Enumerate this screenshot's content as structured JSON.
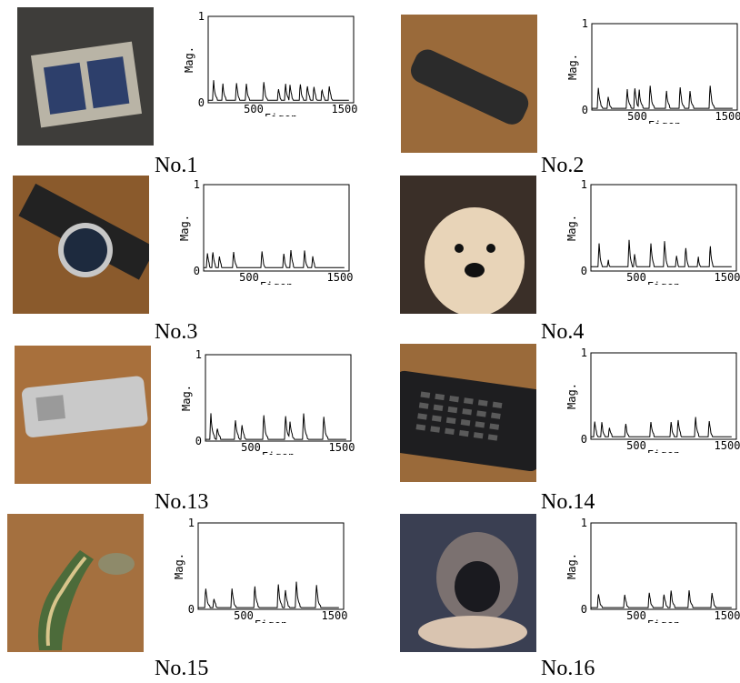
{
  "chart_data": [
    {
      "type": "line",
      "label": "No.1",
      "xlabel": "Eigen",
      "ylabel": "Mag.",
      "xlim": [
        0,
        1600
      ],
      "ylim": [
        0,
        1
      ],
      "xticks": [
        500,
        1500
      ],
      "yticks": [
        0,
        1
      ],
      "peaks": [
        [
          60,
          0.24
        ],
        [
          160,
          0.22
        ],
        [
          310,
          0.24
        ],
        [
          420,
          0.2
        ],
        [
          610,
          0.25
        ],
        [
          770,
          0.18
        ],
        [
          850,
          0.22
        ],
        [
          900,
          0.2
        ],
        [
          1010,
          0.24
        ],
        [
          1090,
          0.21
        ],
        [
          1160,
          0.22
        ],
        [
          1250,
          0.18
        ],
        [
          1330,
          0.2
        ],
        [
          1560,
          0.28
        ]
      ],
      "baseline": 0.03
    },
    {
      "type": "line",
      "label": "No.2",
      "xlabel": "Eigen",
      "ylabel": "Mag.",
      "xlim": [
        0,
        1600
      ],
      "ylim": [
        0,
        1
      ],
      "xticks": [
        500,
        1500
      ],
      "yticks": [
        0,
        1
      ],
      "peaks": [
        [
          70,
          0.28
        ],
        [
          180,
          0.14
        ],
        [
          390,
          0.22
        ],
        [
          470,
          0.3
        ],
        [
          520,
          0.24
        ],
        [
          640,
          0.3
        ],
        [
          820,
          0.22
        ],
        [
          970,
          0.28
        ],
        [
          1080,
          0.2
        ],
        [
          1300,
          0.3
        ]
      ],
      "baseline": 0.02
    },
    {
      "type": "line",
      "label": "No.3",
      "xlabel": "Eigen",
      "ylabel": "Mag.",
      "xlim": [
        0,
        1600
      ],
      "ylim": [
        0,
        1
      ],
      "xticks": [
        500,
        1500
      ],
      "yticks": [
        0,
        1
      ],
      "peaks": [
        [
          40,
          0.22
        ],
        [
          100,
          0.24
        ],
        [
          170,
          0.2
        ],
        [
          330,
          0.22
        ],
        [
          640,
          0.24
        ],
        [
          880,
          0.2
        ],
        [
          960,
          0.24
        ],
        [
          1110,
          0.22
        ],
        [
          1200,
          0.16
        ]
      ],
      "baseline": 0.04
    },
    {
      "type": "line",
      "label": "No.4",
      "xlabel": "Eigen",
      "ylabel": "Mag.",
      "xlim": [
        0,
        1600
      ],
      "ylim": [
        0,
        1
      ],
      "xticks": [
        500,
        1500
      ],
      "yticks": [
        0,
        1
      ],
      "peaks": [
        [
          90,
          0.3
        ],
        [
          190,
          0.12
        ],
        [
          420,
          0.34
        ],
        [
          480,
          0.18
        ],
        [
          660,
          0.32
        ],
        [
          810,
          0.33
        ],
        [
          940,
          0.18
        ],
        [
          1040,
          0.31
        ],
        [
          1180,
          0.16
        ],
        [
          1310,
          0.33
        ]
      ],
      "baseline": 0.05
    },
    {
      "type": "line",
      "label": "No.13",
      "xlabel": "Eigen",
      "ylabel": "Mag.",
      "xlim": [
        0,
        1600
      ],
      "ylim": [
        0,
        1
      ],
      "xticks": [
        500,
        1500
      ],
      "yticks": [
        0,
        1
      ],
      "peaks": [
        [
          60,
          0.3
        ],
        [
          130,
          0.16
        ],
        [
          330,
          0.24
        ],
        [
          400,
          0.2
        ],
        [
          640,
          0.32
        ],
        [
          880,
          0.3
        ],
        [
          930,
          0.22
        ],
        [
          1080,
          0.3
        ],
        [
          1300,
          0.3
        ]
      ],
      "baseline": 0.02
    },
    {
      "type": "line",
      "label": "No.14",
      "xlabel": "Eigen",
      "ylabel": "Mag.",
      "xlim": [
        0,
        1600
      ],
      "ylim": [
        0,
        1
      ],
      "xticks": [
        500,
        1500
      ],
      "yticks": [
        0,
        1
      ],
      "peaks": [
        [
          40,
          0.22
        ],
        [
          120,
          0.18
        ],
        [
          200,
          0.16
        ],
        [
          380,
          0.2
        ],
        [
          660,
          0.2
        ],
        [
          880,
          0.2
        ],
        [
          960,
          0.22
        ],
        [
          1150,
          0.26
        ],
        [
          1300,
          0.22
        ]
      ],
      "baseline": 0.03
    },
    {
      "type": "line",
      "label": "No.15",
      "xlabel": "Eigen",
      "ylabel": "Mag.",
      "xlim": [
        0,
        1600
      ],
      "ylim": [
        0,
        1
      ],
      "xticks": [
        500,
        1500
      ],
      "yticks": [
        0,
        1
      ],
      "peaks": [
        [
          80,
          0.28
        ],
        [
          170,
          0.14
        ],
        [
          370,
          0.26
        ],
        [
          620,
          0.3
        ],
        [
          880,
          0.3
        ],
        [
          960,
          0.22
        ],
        [
          1080,
          0.3
        ],
        [
          1300,
          0.3
        ]
      ],
      "baseline": 0.02
    },
    {
      "type": "line",
      "label": "No.16",
      "xlabel": "Eigen",
      "ylabel": "Mag.",
      "xlim": [
        0,
        1600
      ],
      "ylim": [
        0,
        1
      ],
      "xticks": [
        500,
        1500
      ],
      "yticks": [
        0,
        1
      ],
      "peaks": [
        [
          80,
          0.2
        ],
        [
          370,
          0.18
        ],
        [
          640,
          0.2
        ],
        [
          800,
          0.2
        ],
        [
          880,
          0.22
        ],
        [
          1080,
          0.2
        ],
        [
          1330,
          0.2
        ]
      ],
      "baseline": 0.02
    }
  ],
  "photos": [
    {
      "subject": "card-holder",
      "colors": [
        "#b9b4a6",
        "#6b6a66",
        "#2d3f6b"
      ]
    },
    {
      "subject": "remote-control",
      "colors": [
        "#9a6a3a",
        "#2b2b2b",
        "#5a3a1c"
      ]
    },
    {
      "subject": "wrist-watch",
      "colors": [
        "#8a5a2c",
        "#1d2a3e",
        "#c7c7c7"
      ]
    },
    {
      "subject": "dog",
      "colors": [
        "#3a2f28",
        "#e8d4b8",
        "#111111"
      ]
    },
    {
      "subject": "mobile-phone",
      "colors": [
        "#a8703c",
        "#c9c9c9",
        "#6e4420"
      ]
    },
    {
      "subject": "remote-control",
      "colors": [
        "#9a6a3a",
        "#1e1e20",
        "#c1884a"
      ]
    },
    {
      "subject": "shoe-horn",
      "colors": [
        "#a4703f",
        "#4c6b3a",
        "#d8c58b"
      ]
    },
    {
      "subject": "cat",
      "colors": [
        "#1a1a1f",
        "#d9c4b0",
        "#3a3f52"
      ]
    }
  ]
}
